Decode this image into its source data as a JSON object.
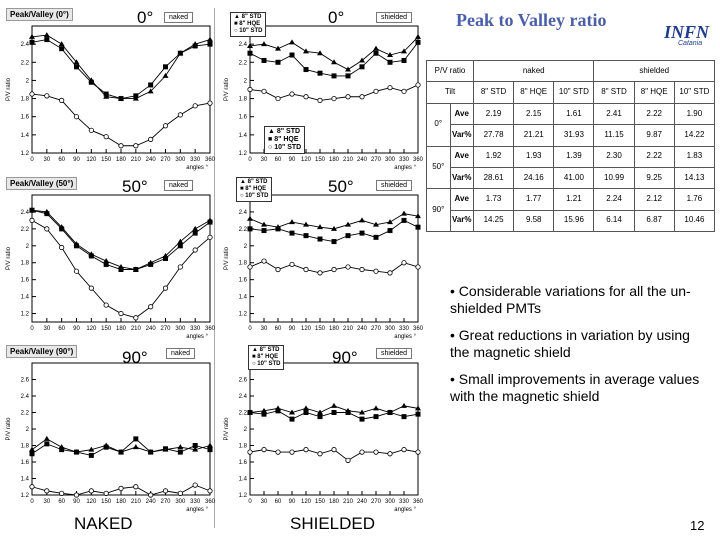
{
  "slide": {
    "title": "Peak to Valley ratio",
    "logo_text": "INFN",
    "logo_sub": "Catania",
    "page_number": "12",
    "bottom_labels": {
      "naked": "NAKED",
      "shielded": "SHIELDED"
    }
  },
  "panels": {
    "naked_0": {
      "title": "Peak/Valley (0°)",
      "tag": "naked",
      "angle": "0°"
    },
    "shield_0": {
      "tag": "shielded",
      "angle": "0°"
    },
    "naked_50": {
      "title": "Peak/Valley (50°)",
      "tag": "naked",
      "angle": "50°"
    },
    "shield_50": {
      "tag": "shielded",
      "angle": "50°"
    },
    "naked_90": {
      "title": "Peak/Valley (90°)",
      "tag": "naked",
      "angle": "90°"
    },
    "shield_90": {
      "tag": "shielded",
      "angle": "90°"
    }
  },
  "legend": [
    "8\" STD",
    "8\" HQE",
    "10\" STD"
  ],
  "chart_data": [
    {
      "type": "line",
      "id": "naked_0",
      "title": "Peak/Valley (0°)",
      "xlabel": "angles °",
      "ylabel": "P/V ratio",
      "x": [
        0,
        30,
        60,
        90,
        120,
        150,
        180,
        210,
        240,
        270,
        300,
        330,
        360
      ],
      "xlim": [
        0,
        360
      ],
      "ylim": [
        1.2,
        2.6
      ],
      "yticks": [
        1.2,
        1.4,
        1.6,
        1.8,
        2,
        2.2,
        2.4
      ],
      "series": [
        {
          "name": "8\" STD",
          "marker": "triangle",
          "values": [
            2.48,
            2.5,
            2.4,
            2.2,
            2.0,
            1.82,
            1.8,
            1.8,
            1.88,
            2.05,
            2.3,
            2.4,
            2.45
          ]
        },
        {
          "name": "8\" HQE",
          "marker": "square",
          "values": [
            2.42,
            2.45,
            2.35,
            2.15,
            1.98,
            1.85,
            1.8,
            1.83,
            1.95,
            2.15,
            2.3,
            2.38,
            2.4
          ]
        },
        {
          "name": "10\" STD",
          "marker": "circle",
          "values": [
            1.85,
            1.83,
            1.78,
            1.6,
            1.45,
            1.38,
            1.28,
            1.28,
            1.35,
            1.5,
            1.62,
            1.72,
            1.75
          ]
        }
      ]
    },
    {
      "type": "line",
      "id": "shield_0",
      "xlabel": "angles °",
      "ylabel": "P/V ratio",
      "x": [
        0,
        30,
        60,
        90,
        120,
        150,
        180,
        210,
        240,
        270,
        300,
        330,
        360
      ],
      "xlim": [
        0,
        360
      ],
      "ylim": [
        1.2,
        2.6
      ],
      "yticks": [
        1.2,
        1.4,
        1.6,
        1.8,
        2,
        2.2,
        2.4
      ],
      "series": [
        {
          "name": "8\" STD",
          "marker": "triangle",
          "values": [
            2.38,
            2.4,
            2.35,
            2.42,
            2.32,
            2.3,
            2.2,
            2.12,
            2.22,
            2.35,
            2.28,
            2.32,
            2.48
          ]
        },
        {
          "name": "8\" HQE",
          "marker": "square",
          "values": [
            2.3,
            2.22,
            2.2,
            2.28,
            2.12,
            2.08,
            2.05,
            2.05,
            2.15,
            2.3,
            2.2,
            2.22,
            2.42
          ]
        },
        {
          "name": "10\" STD",
          "marker": "circle",
          "values": [
            1.9,
            1.88,
            1.8,
            1.85,
            1.82,
            1.78,
            1.8,
            1.82,
            1.82,
            1.88,
            1.92,
            1.88,
            1.95
          ]
        }
      ]
    },
    {
      "type": "line",
      "id": "naked_50",
      "title": "Peak/Valley (50°)",
      "xlabel": "angles °",
      "ylabel": "P/V ratio",
      "x": [
        0,
        30,
        60,
        90,
        120,
        150,
        180,
        210,
        240,
        270,
        300,
        330,
        360
      ],
      "xlim": [
        0,
        360
      ],
      "ylim": [
        1.1,
        2.6
      ],
      "yticks": [
        1.2,
        1.4,
        1.6,
        1.8,
        2,
        2.2,
        2.4
      ],
      "series": [
        {
          "name": "8\" STD",
          "marker": "triangle",
          "values": [
            2.42,
            2.4,
            2.22,
            2.02,
            1.9,
            1.82,
            1.75,
            1.72,
            1.8,
            1.88,
            2.05,
            2.2,
            2.3
          ]
        },
        {
          "name": "8\" HQE",
          "marker": "square",
          "values": [
            2.42,
            2.38,
            2.2,
            2.0,
            1.88,
            1.78,
            1.72,
            1.72,
            1.78,
            1.85,
            2.0,
            2.15,
            2.28
          ]
        },
        {
          "name": "10\" STD",
          "marker": "circle",
          "values": [
            2.3,
            2.2,
            1.98,
            1.7,
            1.5,
            1.3,
            1.2,
            1.15,
            1.28,
            1.5,
            1.75,
            1.95,
            2.1
          ]
        }
      ]
    },
    {
      "type": "line",
      "id": "shield_50",
      "xlabel": "angles °",
      "ylabel": "P/V ratio",
      "x": [
        0,
        30,
        60,
        90,
        120,
        150,
        180,
        210,
        240,
        270,
        300,
        330,
        360
      ],
      "xlim": [
        0,
        360
      ],
      "ylim": [
        1.1,
        2.6
      ],
      "yticks": [
        1.2,
        1.4,
        1.6,
        1.8,
        2,
        2.2,
        2.4
      ],
      "series": [
        {
          "name": "8\" STD",
          "marker": "triangle",
          "values": [
            2.32,
            2.25,
            2.22,
            2.28,
            2.25,
            2.22,
            2.2,
            2.25,
            2.3,
            2.25,
            2.28,
            2.38,
            2.35
          ]
        },
        {
          "name": "8\" HQE",
          "marker": "square",
          "values": [
            2.2,
            2.18,
            2.2,
            2.15,
            2.12,
            2.08,
            2.05,
            2.12,
            2.15,
            2.1,
            2.18,
            2.3,
            2.22
          ]
        },
        {
          "name": "10\" STD",
          "marker": "circle",
          "values": [
            1.75,
            1.82,
            1.72,
            1.78,
            1.72,
            1.68,
            1.72,
            1.75,
            1.72,
            1.7,
            1.68,
            1.8,
            1.75
          ]
        }
      ]
    },
    {
      "type": "line",
      "id": "naked_90",
      "title": "Peak/Valley (90°)",
      "xlabel": "angles °",
      "ylabel": "P/V ratio",
      "x": [
        0,
        30,
        60,
        90,
        120,
        150,
        180,
        210,
        240,
        270,
        300,
        330,
        360
      ],
      "xlim": [
        0,
        360
      ],
      "ylim": [
        1.2,
        2.8
      ],
      "yticks": [
        1.2,
        1.4,
        1.6,
        1.8,
        2,
        2.2,
        2.4,
        2.6
      ],
      "series": [
        {
          "name": "8\" STD",
          "marker": "triangle",
          "values": [
            1.75,
            1.88,
            1.78,
            1.72,
            1.75,
            1.8,
            1.72,
            1.78,
            1.72,
            1.75,
            1.78,
            1.75,
            1.8
          ]
        },
        {
          "name": "8\" HQE",
          "marker": "square",
          "values": [
            1.7,
            1.82,
            1.75,
            1.72,
            1.68,
            1.78,
            1.72,
            1.88,
            1.72,
            1.76,
            1.72,
            1.8,
            1.75
          ]
        },
        {
          "name": "10\" STD",
          "marker": "circle",
          "values": [
            1.3,
            1.25,
            1.22,
            1.2,
            1.25,
            1.22,
            1.28,
            1.3,
            1.2,
            1.25,
            1.22,
            1.32,
            1.25
          ]
        }
      ]
    },
    {
      "type": "line",
      "id": "shield_90",
      "xlabel": "angles °",
      "ylabel": "P/V ratio",
      "x": [
        0,
        30,
        60,
        90,
        120,
        150,
        180,
        210,
        240,
        270,
        300,
        330,
        360
      ],
      "xlim": [
        0,
        360
      ],
      "ylim": [
        1.2,
        2.8
      ],
      "yticks": [
        1.2,
        1.4,
        1.6,
        1.8,
        2,
        2.2,
        2.4,
        2.6
      ],
      "series": [
        {
          "name": "8\" STD",
          "marker": "triangle",
          "values": [
            2.2,
            2.22,
            2.25,
            2.2,
            2.25,
            2.2,
            2.28,
            2.22,
            2.2,
            2.25,
            2.2,
            2.28,
            2.25
          ]
        },
        {
          "name": "8\" HQE",
          "marker": "square",
          "values": [
            2.2,
            2.18,
            2.22,
            2.12,
            2.2,
            2.15,
            2.2,
            2.2,
            2.12,
            2.15,
            2.2,
            2.15,
            2.18
          ]
        },
        {
          "name": "10\" STD",
          "marker": "circle",
          "values": [
            1.72,
            1.75,
            1.72,
            1.72,
            1.75,
            1.7,
            1.75,
            1.62,
            1.72,
            1.72,
            1.7,
            1.75,
            1.72
          ]
        }
      ]
    }
  ],
  "table": {
    "title": "P/V ratio",
    "groups": [
      "naked",
      "shielded"
    ],
    "tilt_label": "Tilt",
    "columns": [
      "8\" STD",
      "8\" HQE",
      "10\" STD",
      "8\" STD",
      "8\" HQE",
      "10\" STD"
    ],
    "rows": [
      {
        "tilt": "0°",
        "stats": [
          {
            "label": "Ave",
            "values": [
              "2.19",
              "2.15",
              "1.61",
              "2.41",
              "2.22",
              "1.90"
            ]
          },
          {
            "label": "Var%",
            "values": [
              "27.78",
              "21.21",
              "31.93",
              "11.15",
              "9.87",
              "14.22"
            ]
          }
        ]
      },
      {
        "tilt": "50°",
        "stats": [
          {
            "label": "Ave",
            "values": [
              "1.92",
              "1.93",
              "1.39",
              "2.30",
              "2.22",
              "1.83"
            ]
          },
          {
            "label": "Var%",
            "values": [
              "28.61",
              "24.16",
              "41.00",
              "10.99",
              "9.25",
              "14.13"
            ]
          }
        ]
      },
      {
        "tilt": "90°",
        "stats": [
          {
            "label": "Ave",
            "values": [
              "1.73",
              "1.77",
              "1.21",
              "2.24",
              "2.12",
              "1.76"
            ]
          },
          {
            "label": "Var%",
            "values": [
              "14.25",
              "9.58",
              "15.96",
              "6.14",
              "6.87",
              "10.46"
            ]
          }
        ]
      }
    ]
  },
  "bullets": [
    "Considerable variations for all the un-shielded PMTs",
    "Great reductions in variation by using the magnetic shield",
    "Small improvements in average values with the magnetic shield"
  ]
}
